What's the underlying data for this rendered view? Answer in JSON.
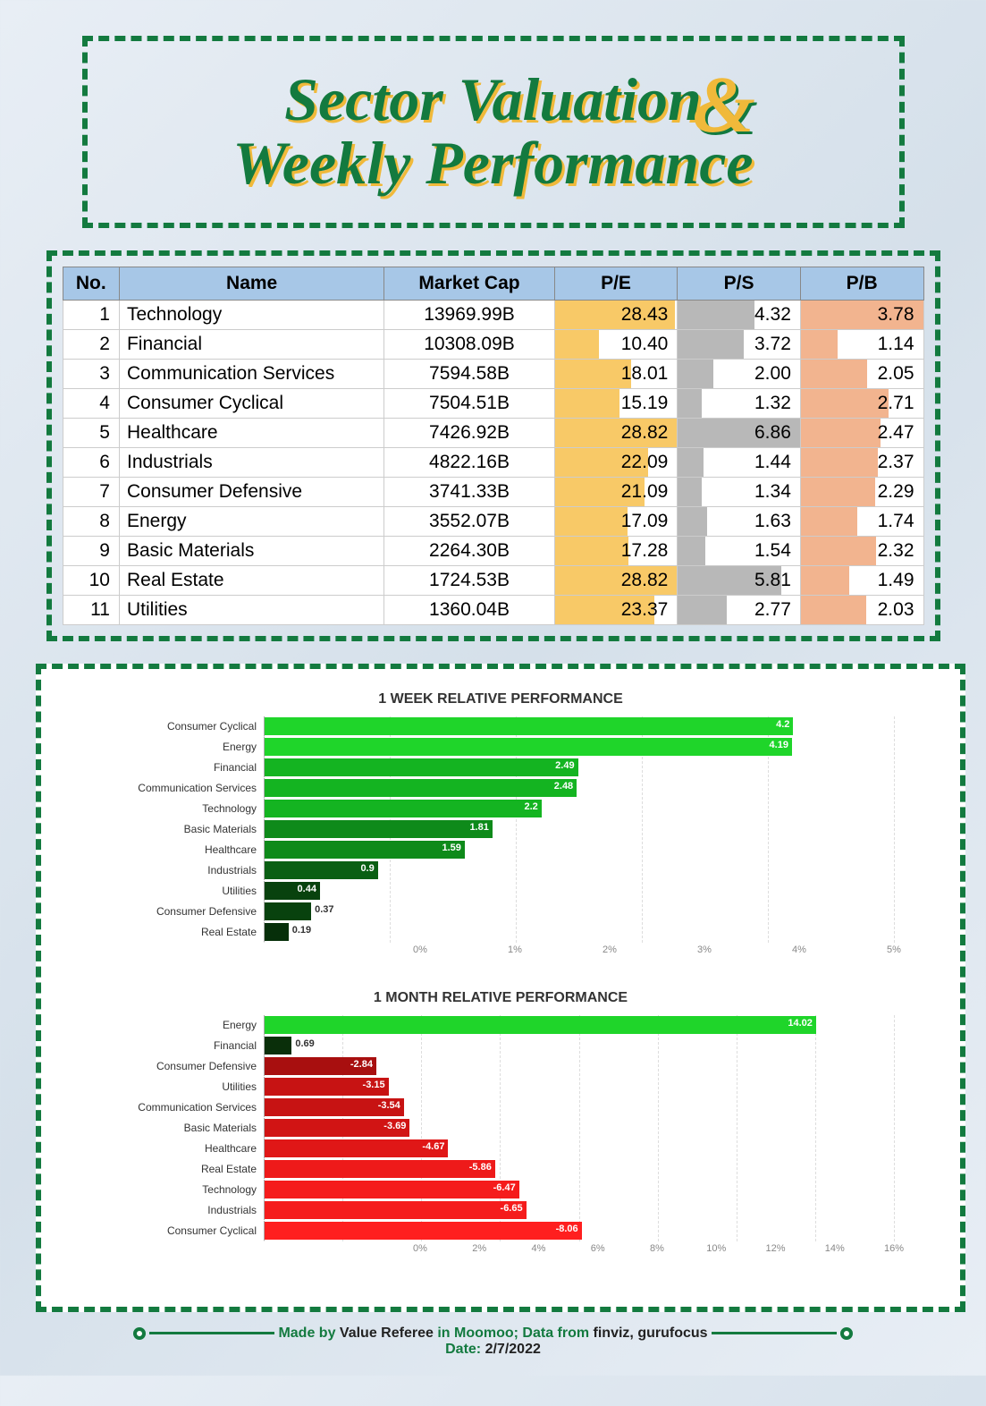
{
  "title": {
    "line1": "Sector Valuation",
    "line2": "Weekly Performance",
    "ampersand": "&"
  },
  "valuation_table": {
    "columns": [
      "No.",
      "Name",
      "Market Cap",
      "P/E",
      "P/S",
      "P/B"
    ],
    "header_bg": "#a7c7e7",
    "pe_color": "#f8c967",
    "ps_color": "#b8b8b8",
    "pb_color": "#f2b48f",
    "pe_max": 28.82,
    "ps_max": 6.86,
    "pb_max": 3.78,
    "rows": [
      {
        "no": 1,
        "name": "Technology",
        "mc": "13969.99B",
        "pe": "28.43",
        "ps": "4.32",
        "pb": "3.78",
        "pe_w": 98.6,
        "ps_w": 63.0,
        "pb_w": 100.0
      },
      {
        "no": 2,
        "name": "Financial",
        "mc": "10308.09B",
        "pe": "10.40",
        "ps": "3.72",
        "pb": "1.14",
        "pe_w": 36.1,
        "ps_w": 54.2,
        "pb_w": 30.2
      },
      {
        "no": 3,
        "name": "Communication Services",
        "mc": "7594.58B",
        "pe": "18.01",
        "ps": "2.00",
        "pb": "2.05",
        "pe_w": 62.5,
        "ps_w": 29.2,
        "pb_w": 54.2
      },
      {
        "no": 4,
        "name": "Consumer Cyclical",
        "mc": "7504.51B",
        "pe": "15.19",
        "ps": "1.32",
        "pb": "2.71",
        "pe_w": 52.7,
        "ps_w": 19.2,
        "pb_w": 71.7
      },
      {
        "no": 5,
        "name": "Healthcare",
        "mc": "7426.92B",
        "pe": "28.82",
        "ps": "6.86",
        "pb": "2.47",
        "pe_w": 100.0,
        "ps_w": 100.0,
        "pb_w": 65.3
      },
      {
        "no": 6,
        "name": "Industrials",
        "mc": "4822.16B",
        "pe": "22.09",
        "ps": "1.44",
        "pb": "2.37",
        "pe_w": 76.6,
        "ps_w": 21.0,
        "pb_w": 62.7
      },
      {
        "no": 7,
        "name": "Consumer Defensive",
        "mc": "3741.33B",
        "pe": "21.09",
        "ps": "1.34",
        "pb": "2.29",
        "pe_w": 73.2,
        "ps_w": 19.5,
        "pb_w": 60.6
      },
      {
        "no": 8,
        "name": "Energy",
        "mc": "3552.07B",
        "pe": "17.09",
        "ps": "1.63",
        "pb": "1.74",
        "pe_w": 59.3,
        "ps_w": 23.8,
        "pb_w": 46.0
      },
      {
        "no": 9,
        "name": "Basic Materials",
        "mc": "2264.30B",
        "pe": "17.28",
        "ps": "1.54",
        "pb": "2.32",
        "pe_w": 60.0,
        "ps_w": 22.4,
        "pb_w": 61.4
      },
      {
        "no": 10,
        "name": "Real Estate",
        "mc": "1724.53B",
        "pe": "28.82",
        "ps": "5.81",
        "pb": "1.49",
        "pe_w": 100.0,
        "ps_w": 84.7,
        "pb_w": 39.4
      },
      {
        "no": 11,
        "name": "Utilities",
        "mc": "1360.04B",
        "pe": "23.37",
        "ps": "2.77",
        "pb": "2.03",
        "pe_w": 81.1,
        "ps_w": 40.4,
        "pb_w": 53.7
      }
    ]
  },
  "week_chart": {
    "title": "1 WEEK RELATIVE PERFORMANCE",
    "xmax": 5,
    "xticks": [
      "0%",
      "1%",
      "2%",
      "3%",
      "4%",
      "5%"
    ],
    "green_palette": [
      "#1fd52a",
      "#1fd52a",
      "#14b421",
      "#14b421",
      "#14b421",
      "#0e8a1a",
      "#0e8a1a",
      "#0a5f13",
      "#08420e",
      "#08420e",
      "#062f0a"
    ],
    "rows": [
      {
        "cat": "Consumer Cyclical",
        "val": 4.2
      },
      {
        "cat": "Energy",
        "val": 4.19
      },
      {
        "cat": "Financial",
        "val": 2.49
      },
      {
        "cat": "Communication Services",
        "val": 2.48
      },
      {
        "cat": "Technology",
        "val": 2.2
      },
      {
        "cat": "Basic Materials",
        "val": 1.81
      },
      {
        "cat": "Healthcare",
        "val": 1.59
      },
      {
        "cat": "Industrials",
        "val": 0.9
      },
      {
        "cat": "Utilities",
        "val": 0.44
      },
      {
        "cat": "Consumer Defensive",
        "val": 0.37
      },
      {
        "cat": "Real Estate",
        "val": 0.19
      }
    ]
  },
  "month_chart": {
    "title": "1 MONTH RELATIVE PERFORMANCE",
    "xmax": 16,
    "xticks": [
      "0%",
      "2%",
      "4%",
      "6%",
      "8%",
      "10%",
      "12%",
      "14%",
      "16%"
    ],
    "rows": [
      {
        "cat": "Energy",
        "val": 14.02,
        "color": "#1fd52a"
      },
      {
        "cat": "Financial",
        "val": 0.69,
        "color": "#0a2f0a"
      },
      {
        "cat": "Consumer Defensive",
        "val": -2.84,
        "color": "#a80f0f"
      },
      {
        "cat": "Utilities",
        "val": -3.15,
        "color": "#c71313"
      },
      {
        "cat": "Communication Services",
        "val": -3.54,
        "color": "#c71313"
      },
      {
        "cat": "Basic Materials",
        "val": -3.69,
        "color": "#d11414"
      },
      {
        "cat": "Healthcare",
        "val": -4.67,
        "color": "#e01717"
      },
      {
        "cat": "Real Estate",
        "val": -5.86,
        "color": "#ee1a1a"
      },
      {
        "cat": "Technology",
        "val": -6.47,
        "color": "#f51c1c"
      },
      {
        "cat": "Industrials",
        "val": -6.65,
        "color": "#f51c1c"
      },
      {
        "cat": "Consumer Cyclical",
        "val": -8.06,
        "color": "#ff1f1f"
      }
    ]
  },
  "footer": {
    "made_prefix": "Made by ",
    "author": "Value Referee",
    "mid": " in Moomoo; Data from ",
    "sources": "finviz, gurufocus",
    "date_label": "Date: ",
    "date": "2/7/2022"
  }
}
